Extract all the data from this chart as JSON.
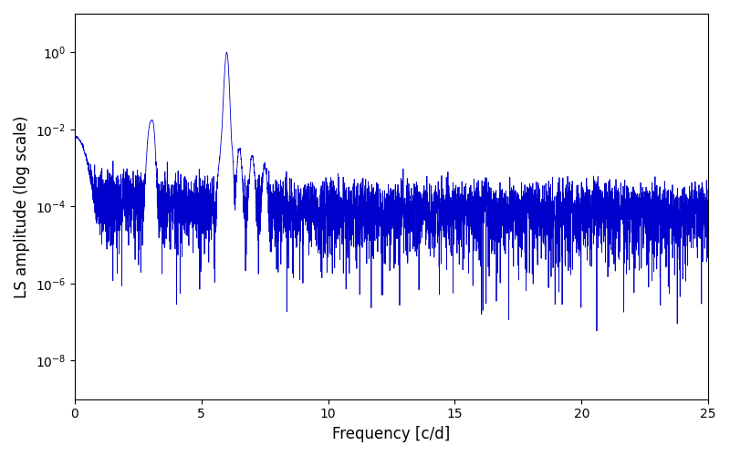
{
  "title": "",
  "xlabel": "Frequency [c/d]",
  "ylabel": "LS amplitude (log scale)",
  "xlim": [
    0,
    25
  ],
  "ylim": [
    1e-09,
    10.0
  ],
  "line_color": "#0000cc",
  "line_width": 0.6,
  "yscale": "log",
  "freq_min": 0.0,
  "freq_max": 25.0,
  "n_points": 5000,
  "seed": 7,
  "background_color": "#ffffff",
  "fig_width": 8.0,
  "fig_height": 5.0,
  "dpi": 100,
  "noise_floor": 0.0001,
  "noise_sigma_up": 0.8,
  "noise_sigma_down": 2.2,
  "yticks": [
    1e-08,
    1e-06,
    0.0001,
    0.01,
    1.0
  ],
  "xticks": [
    0,
    5,
    10,
    15,
    20,
    25
  ]
}
